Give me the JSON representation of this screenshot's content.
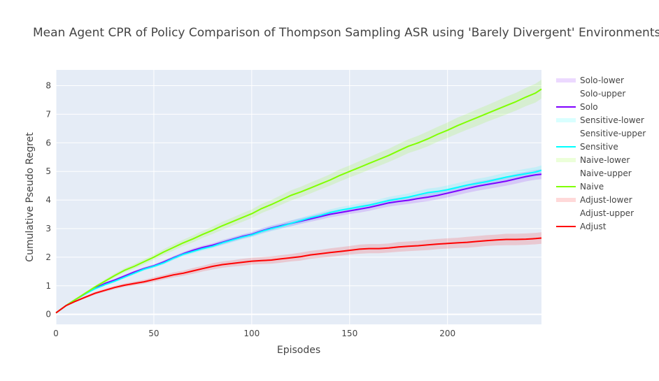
{
  "chart_data": {
    "type": "line",
    "title": "Mean Agent CPR of Policy Comparison of Thompson Sampling ASR using 'Barely Divergent' Environments",
    "xlabel": "Episodes",
    "ylabel": "Cumulative Pseudo Regret",
    "xlim": [
      0,
      248
    ],
    "ylim": [
      -0.35,
      8.55
    ],
    "x_ticks": [
      0,
      50,
      100,
      150,
      200
    ],
    "y_ticks": [
      0,
      1,
      2,
      3,
      4,
      5,
      6,
      7,
      8
    ],
    "grid": true,
    "legend_position": "right",
    "legend": [
      "Solo-lower",
      "Solo-upper",
      "Solo",
      "Sensitive-lower",
      "Sensitive-upper",
      "Sensitive",
      "Naive-lower",
      "Naive-upper",
      "Naive",
      "Adjust-lower",
      "Adjust-upper",
      "Adjust"
    ],
    "series": [
      {
        "name": "Solo",
        "color": "#7f00ff",
        "band_color": "rgba(127,0,255,0.15)",
        "x": [
          0,
          5,
          10,
          15,
          20,
          25,
          30,
          35,
          40,
          45,
          50,
          55,
          60,
          65,
          70,
          75,
          80,
          85,
          90,
          95,
          100,
          105,
          110,
          115,
          120,
          125,
          130,
          135,
          140,
          145,
          150,
          155,
          160,
          165,
          170,
          175,
          180,
          185,
          190,
          195,
          200,
          205,
          210,
          215,
          220,
          225,
          230,
          235,
          240,
          245,
          248
        ],
        "y": [
          0.05,
          0.3,
          0.52,
          0.72,
          0.92,
          1.08,
          1.2,
          1.34,
          1.48,
          1.6,
          1.7,
          1.83,
          1.98,
          2.12,
          2.24,
          2.34,
          2.42,
          2.52,
          2.62,
          2.72,
          2.8,
          2.92,
          3.02,
          3.1,
          3.18,
          3.26,
          3.34,
          3.42,
          3.5,
          3.56,
          3.62,
          3.68,
          3.74,
          3.82,
          3.9,
          3.95,
          3.99,
          4.05,
          4.1,
          4.16,
          4.24,
          4.32,
          4.4,
          4.48,
          4.54,
          4.6,
          4.66,
          4.74,
          4.82,
          4.88,
          4.9
        ],
        "lower": [
          0.04,
          0.28,
          0.49,
          0.69,
          0.88,
          1.04,
          1.16,
          1.29,
          1.43,
          1.55,
          1.65,
          1.77,
          1.92,
          2.06,
          2.17,
          2.27,
          2.35,
          2.44,
          2.54,
          2.64,
          2.72,
          2.83,
          2.93,
          3.01,
          3.08,
          3.16,
          3.24,
          3.31,
          3.39,
          3.45,
          3.51,
          3.56,
          3.62,
          3.7,
          3.77,
          3.82,
          3.86,
          3.91,
          3.96,
          4.02,
          4.09,
          4.17,
          4.25,
          4.32,
          4.38,
          4.44,
          4.5,
          4.57,
          4.65,
          4.71,
          4.73
        ],
        "upper": [
          0.06,
          0.32,
          0.55,
          0.75,
          0.96,
          1.12,
          1.24,
          1.39,
          1.53,
          1.65,
          1.75,
          1.89,
          2.04,
          2.18,
          2.31,
          2.41,
          2.49,
          2.6,
          2.7,
          2.8,
          2.88,
          3.01,
          3.11,
          3.19,
          3.28,
          3.36,
          3.44,
          3.53,
          3.61,
          3.67,
          3.73,
          3.8,
          3.86,
          3.94,
          4.03,
          4.08,
          4.12,
          4.19,
          4.24,
          4.3,
          4.39,
          4.47,
          4.55,
          4.64,
          4.7,
          4.76,
          4.82,
          4.91,
          4.99,
          5.05,
          5.07
        ]
      },
      {
        "name": "Sensitive",
        "color": "#00ffff",
        "band_color": "rgba(0,255,255,0.15)",
        "x": [
          0,
          5,
          10,
          15,
          20,
          25,
          30,
          35,
          40,
          45,
          50,
          55,
          60,
          65,
          70,
          75,
          80,
          85,
          90,
          95,
          100,
          105,
          110,
          115,
          120,
          125,
          130,
          135,
          140,
          145,
          150,
          155,
          160,
          165,
          170,
          175,
          180,
          185,
          190,
          195,
          200,
          205,
          210,
          215,
          220,
          225,
          230,
          235,
          240,
          245,
          248
        ],
        "y": [
          0.05,
          0.3,
          0.52,
          0.72,
          0.9,
          1.04,
          1.16,
          1.3,
          1.44,
          1.58,
          1.68,
          1.8,
          1.96,
          2.1,
          2.2,
          2.3,
          2.38,
          2.5,
          2.6,
          2.7,
          2.78,
          2.9,
          3.0,
          3.08,
          3.18,
          3.28,
          3.38,
          3.46,
          3.56,
          3.64,
          3.7,
          3.76,
          3.82,
          3.9,
          3.98,
          4.04,
          4.1,
          4.18,
          4.26,
          4.3,
          4.36,
          4.44,
          4.52,
          4.58,
          4.64,
          4.72,
          4.8,
          4.86,
          4.92,
          4.98,
          5.04
        ],
        "lower": [
          0.04,
          0.28,
          0.49,
          0.69,
          0.86,
          1.0,
          1.12,
          1.25,
          1.39,
          1.53,
          1.63,
          1.74,
          1.9,
          2.04,
          2.13,
          2.23,
          2.31,
          2.42,
          2.52,
          2.62,
          2.7,
          2.81,
          2.91,
          2.99,
          3.08,
          3.18,
          3.28,
          3.35,
          3.45,
          3.53,
          3.59,
          3.64,
          3.7,
          3.78,
          3.85,
          3.91,
          3.97,
          4.04,
          4.12,
          4.16,
          4.21,
          4.29,
          4.37,
          4.42,
          4.48,
          4.56,
          4.64,
          4.69,
          4.75,
          4.81,
          4.87
        ],
        "upper": [
          0.06,
          0.32,
          0.55,
          0.75,
          0.94,
          1.08,
          1.2,
          1.35,
          1.49,
          1.63,
          1.73,
          1.86,
          2.02,
          2.16,
          2.27,
          2.37,
          2.45,
          2.58,
          2.68,
          2.78,
          2.86,
          2.99,
          3.09,
          3.17,
          3.28,
          3.38,
          3.48,
          3.57,
          3.67,
          3.75,
          3.81,
          3.88,
          3.94,
          4.02,
          4.11,
          4.17,
          4.23,
          4.32,
          4.4,
          4.44,
          4.51,
          4.59,
          4.67,
          4.74,
          4.8,
          4.88,
          4.96,
          5.03,
          5.09,
          5.15,
          5.21
        ]
      },
      {
        "name": "Naive",
        "color": "#80ff00",
        "band_color": "rgba(128,255,0,0.15)",
        "x": [
          0,
          5,
          10,
          15,
          20,
          25,
          30,
          35,
          40,
          45,
          50,
          55,
          60,
          65,
          70,
          75,
          80,
          85,
          90,
          95,
          100,
          105,
          110,
          115,
          120,
          125,
          130,
          135,
          140,
          145,
          150,
          155,
          160,
          165,
          170,
          175,
          180,
          185,
          190,
          195,
          200,
          205,
          210,
          215,
          220,
          225,
          230,
          235,
          240,
          245,
          248
        ],
        "y": [
          0.05,
          0.3,
          0.52,
          0.74,
          0.96,
          1.16,
          1.36,
          1.54,
          1.68,
          1.84,
          2.0,
          2.18,
          2.34,
          2.5,
          2.64,
          2.8,
          2.94,
          3.1,
          3.24,
          3.38,
          3.52,
          3.7,
          3.84,
          4.0,
          4.16,
          4.28,
          4.42,
          4.56,
          4.7,
          4.86,
          5.0,
          5.14,
          5.28,
          5.42,
          5.56,
          5.72,
          5.88,
          6.0,
          6.14,
          6.3,
          6.44,
          6.6,
          6.74,
          6.88,
          7.02,
          7.16,
          7.3,
          7.44,
          7.6,
          7.74,
          7.88
        ],
        "lower": [
          0.04,
          0.28,
          0.49,
          0.7,
          0.91,
          1.1,
          1.29,
          1.47,
          1.6,
          1.75,
          1.91,
          2.08,
          2.23,
          2.39,
          2.52,
          2.68,
          2.81,
          2.96,
          3.1,
          3.23,
          3.37,
          3.54,
          3.68,
          3.83,
          3.98,
          4.1,
          4.23,
          4.37,
          4.5,
          4.65,
          4.79,
          4.92,
          5.06,
          5.19,
          5.33,
          5.48,
          5.64,
          5.75,
          5.88,
          6.04,
          6.17,
          6.32,
          6.46,
          6.59,
          6.73,
          6.86,
          6.99,
          7.13,
          7.28,
          7.41,
          7.55
        ],
        "upper": [
          0.06,
          0.32,
          0.55,
          0.78,
          1.01,
          1.22,
          1.43,
          1.61,
          1.76,
          1.93,
          2.09,
          2.28,
          2.45,
          2.61,
          2.76,
          2.92,
          3.07,
          3.24,
          3.38,
          3.53,
          3.67,
          3.86,
          4.0,
          4.17,
          4.34,
          4.46,
          4.61,
          4.75,
          4.9,
          5.07,
          5.21,
          5.36,
          5.5,
          5.65,
          5.79,
          5.96,
          6.12,
          6.25,
          6.4,
          6.56,
          6.71,
          6.88,
          7.02,
          7.17,
          7.31,
          7.46,
          7.61,
          7.75,
          7.92,
          8.07,
          8.21
        ]
      },
      {
        "name": "Adjust",
        "color": "#ff0000",
        "band_color": "rgba(255,0,0,0.15)",
        "x": [
          0,
          5,
          10,
          15,
          20,
          25,
          30,
          35,
          40,
          45,
          50,
          55,
          60,
          65,
          70,
          75,
          80,
          85,
          90,
          95,
          100,
          105,
          110,
          115,
          120,
          125,
          130,
          135,
          140,
          145,
          150,
          155,
          160,
          165,
          170,
          175,
          180,
          185,
          190,
          195,
          200,
          205,
          210,
          215,
          220,
          225,
          230,
          235,
          240,
          245,
          248
        ],
        "y": [
          0.05,
          0.3,
          0.46,
          0.6,
          0.74,
          0.84,
          0.94,
          1.02,
          1.08,
          1.14,
          1.22,
          1.3,
          1.38,
          1.44,
          1.52,
          1.6,
          1.68,
          1.74,
          1.78,
          1.82,
          1.86,
          1.88,
          1.9,
          1.94,
          1.98,
          2.02,
          2.08,
          2.12,
          2.16,
          2.2,
          2.24,
          2.28,
          2.3,
          2.3,
          2.32,
          2.36,
          2.38,
          2.4,
          2.43,
          2.46,
          2.48,
          2.5,
          2.52,
          2.55,
          2.58,
          2.6,
          2.62,
          2.62,
          2.63,
          2.65,
          2.67
        ],
        "lower": [
          0.04,
          0.28,
          0.43,
          0.56,
          0.69,
          0.79,
          0.88,
          0.96,
          1.01,
          1.07,
          1.14,
          1.22,
          1.29,
          1.35,
          1.42,
          1.5,
          1.57,
          1.63,
          1.67,
          1.7,
          1.74,
          1.76,
          1.77,
          1.81,
          1.85,
          1.88,
          1.94,
          1.98,
          2.01,
          2.05,
          2.09,
          2.12,
          2.14,
          2.14,
          2.16,
          2.19,
          2.21,
          2.23,
          2.25,
          2.28,
          2.3,
          2.32,
          2.33,
          2.36,
          2.39,
          2.41,
          2.42,
          2.42,
          2.43,
          2.45,
          2.47
        ],
        "upper": [
          0.06,
          0.32,
          0.49,
          0.64,
          0.79,
          0.89,
          1.0,
          1.08,
          1.15,
          1.21,
          1.3,
          1.38,
          1.47,
          1.53,
          1.62,
          1.7,
          1.79,
          1.85,
          1.89,
          1.94,
          1.98,
          2.0,
          2.03,
          2.07,
          2.11,
          2.16,
          2.22,
          2.26,
          2.31,
          2.35,
          2.39,
          2.44,
          2.46,
          2.46,
          2.48,
          2.53,
          2.55,
          2.57,
          2.61,
          2.64,
          2.66,
          2.68,
          2.71,
          2.74,
          2.77,
          2.79,
          2.82,
          2.82,
          2.83,
          2.85,
          2.87
        ]
      }
    ]
  }
}
